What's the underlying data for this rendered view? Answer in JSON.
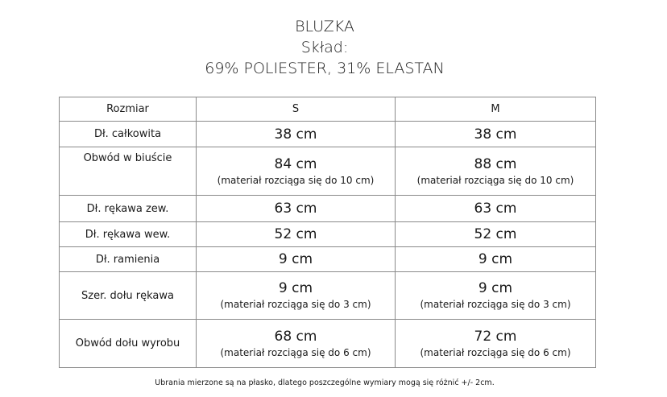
{
  "title": {
    "line1": "BLUZKA",
    "line2": "Skład:",
    "line3": "69% POLIESTER, 31% ELASTAN"
  },
  "table": {
    "header": [
      "Rozmiar",
      "S",
      "M"
    ],
    "rows": [
      {
        "label": "Dł. całkowita",
        "s": {
          "value": "38 cm",
          "note": ""
        },
        "m": {
          "value": "38 cm",
          "note": ""
        }
      },
      {
        "label": "Obwód w biuście",
        "s": {
          "value": "84 cm",
          "note": "(materiał rozciąga się do 10 cm)"
        },
        "m": {
          "value": "88 cm",
          "note": "(materiał rozciąga się do 10 cm)"
        }
      },
      {
        "label": "Dł. rękawa zew.",
        "s": {
          "value": "63 cm",
          "note": ""
        },
        "m": {
          "value": "63 cm",
          "note": ""
        }
      },
      {
        "label": "Dł. rękawa wew.",
        "s": {
          "value": "52 cm",
          "note": ""
        },
        "m": {
          "value": "52 cm",
          "note": ""
        }
      },
      {
        "label": "Dł. ramienia",
        "s": {
          "value": "9 cm",
          "note": ""
        },
        "m": {
          "value": "9 cm",
          "note": ""
        }
      },
      {
        "label": "Szer. dołu rękawa",
        "s": {
          "value": "9 cm",
          "note": "(materiał rozciąga się do  3 cm)"
        },
        "m": {
          "value": "9 cm",
          "note": "(materiał rozciąga się do 3 cm)"
        }
      },
      {
        "label": "Obwód dołu wyrobu",
        "s": {
          "value": "68 cm",
          "note": "(materiał rozciąga się do  6 cm)"
        },
        "m": {
          "value": "72 cm",
          "note": "(materiał rozciąga się do 6 cm)"
        }
      }
    ]
  },
  "footer": "Ubrania mierzone są na płasko, dlatego poszczególne wymiary mogą się różnić +/- 2cm."
}
